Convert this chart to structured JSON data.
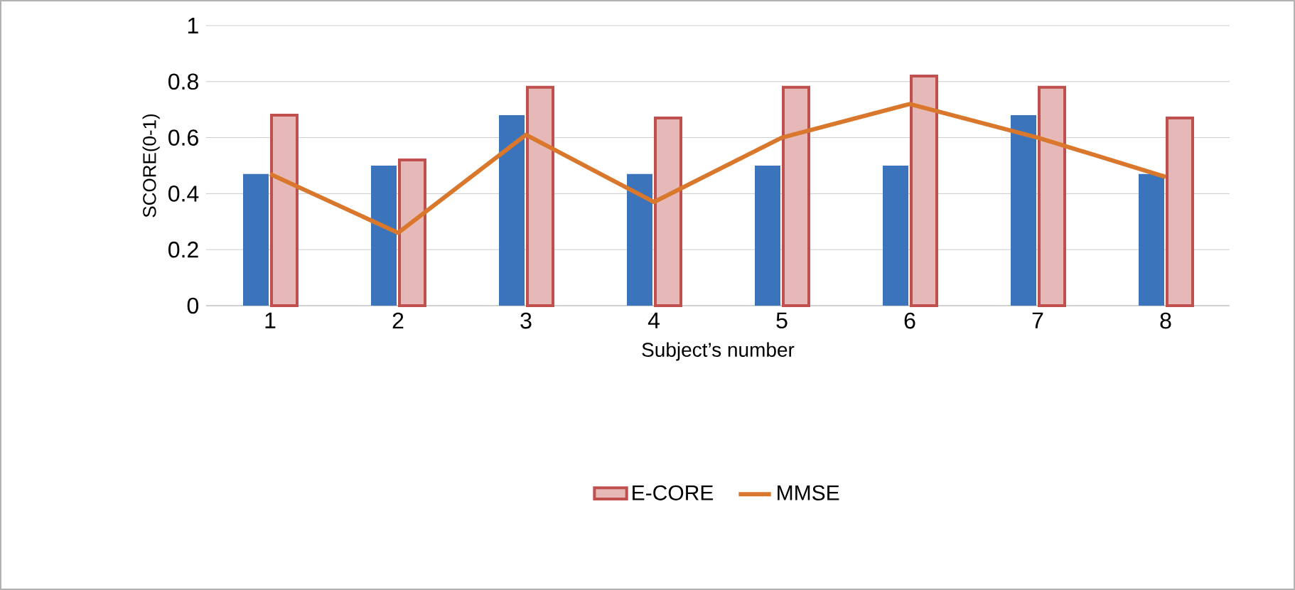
{
  "chart_data": {
    "type": "bar",
    "categories": [
      "1",
      "2",
      "3",
      "4",
      "5",
      "6",
      "7",
      "8"
    ],
    "xlabel": "Subject’s number",
    "ylabel": "SCORE(0-1)",
    "ylim": [
      0,
      1
    ],
    "yticks": [
      0,
      0.2,
      0.4,
      0.6,
      0.8,
      1
    ],
    "grid": "y",
    "legend": "bottom",
    "series": [
      {
        "color": "#3b74bb",
        "values": [
          0.47,
          0.5,
          0.68,
          0.47,
          0.5,
          0.5,
          0.68,
          0.47
        ]
      },
      {
        "name": "E-CORE",
        "color": "#c0504d",
        "values": [
          0.68,
          0.52,
          0.78,
          0.67,
          0.78,
          0.82,
          0.78,
          0.67
        ]
      },
      {
        "name": "MMSE",
        "type": "line",
        "color": "#d9782c",
        "values": [
          0.47,
          0.26,
          0.61,
          0.37,
          0.6,
          0.72,
          0.6,
          0.46
        ]
      }
    ]
  }
}
